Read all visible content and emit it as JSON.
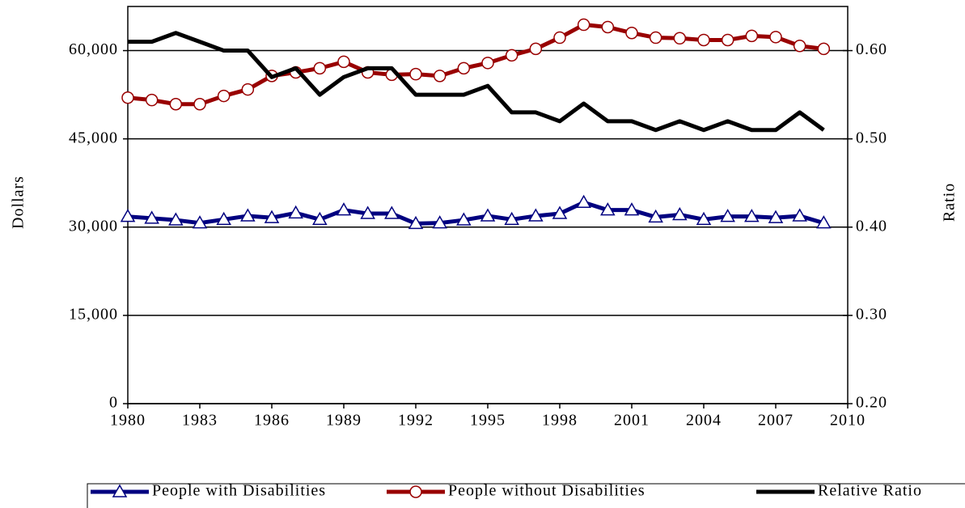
{
  "chart_data": {
    "type": "line",
    "y_label": "Dollars",
    "y2_label": "Ratio",
    "x": [
      1980,
      1981,
      1982,
      1983,
      1984,
      1985,
      1986,
      1987,
      1988,
      1989,
      1990,
      1991,
      1992,
      1993,
      1994,
      1995,
      1996,
      1997,
      1998,
      1999,
      2000,
      2001,
      2002,
      2003,
      2004,
      2005,
      2006,
      2007,
      2008,
      2009
    ],
    "xlim": [
      1980,
      2010
    ],
    "xticks": [
      1980,
      1983,
      1986,
      1989,
      1992,
      1995,
      1998,
      2001,
      2004,
      2007,
      2010
    ],
    "ylim": [
      0,
      67500
    ],
    "yticks": [
      0,
      {
        "value": 15000,
        "label": "15,000"
      },
      {
        "value": 30000,
        "label": "30,000"
      },
      {
        "value": 45000,
        "label": "45,000"
      },
      {
        "value": 60000,
        "label": "60,000"
      }
    ],
    "y2lim": [
      0.2,
      0.65
    ],
    "y2ticks": [
      {
        "value": 0.2,
        "label": "0.20"
      },
      {
        "value": 0.3,
        "label": "0.30"
      },
      {
        "value": 0.4,
        "label": "0.40"
      },
      {
        "value": 0.5,
        "label": "0.50"
      },
      {
        "value": 0.6,
        "label": "0.60"
      }
    ],
    "grid": true,
    "legend": "bottom",
    "series": [
      {
        "name": "People with Disabilities",
        "color": "#000080",
        "marker": "triangle",
        "values": [
          31800,
          31500,
          31200,
          30700,
          31300,
          31900,
          31600,
          32400,
          31300,
          32900,
          32300,
          32300,
          30600,
          30700,
          31200,
          31900,
          31300,
          31900,
          32300,
          34200,
          32900,
          32900,
          31700,
          32100,
          31300,
          31800,
          31800,
          31600,
          31900,
          30700
        ]
      },
      {
        "name": "People without Disabilities",
        "color": "#990000",
        "marker": "circle",
        "values": [
          52000,
          51600,
          50900,
          50900,
          52300,
          53400,
          55700,
          56300,
          57000,
          58100,
          56300,
          55900,
          56000,
          55700,
          57000,
          57900,
          59200,
          60300,
          62200,
          64400,
          64000,
          63000,
          62200,
          62100,
          61800,
          61800,
          62500,
          62300,
          60800,
          60300
        ]
      },
      {
        "name": "Relative Ratio",
        "color": "#000000",
        "marker": "none",
        "axis": "y2",
        "values": [
          0.61,
          0.61,
          0.62,
          0.61,
          0.6,
          0.6,
          0.57,
          0.58,
          0.55,
          0.57,
          0.58,
          0.58,
          0.55,
          0.55,
          0.55,
          0.56,
          0.53,
          0.53,
          0.52,
          0.54,
          0.52,
          0.52,
          0.51,
          0.52,
          0.51,
          0.52,
          0.51,
          0.51,
          0.53,
          0.51
        ]
      }
    ]
  }
}
